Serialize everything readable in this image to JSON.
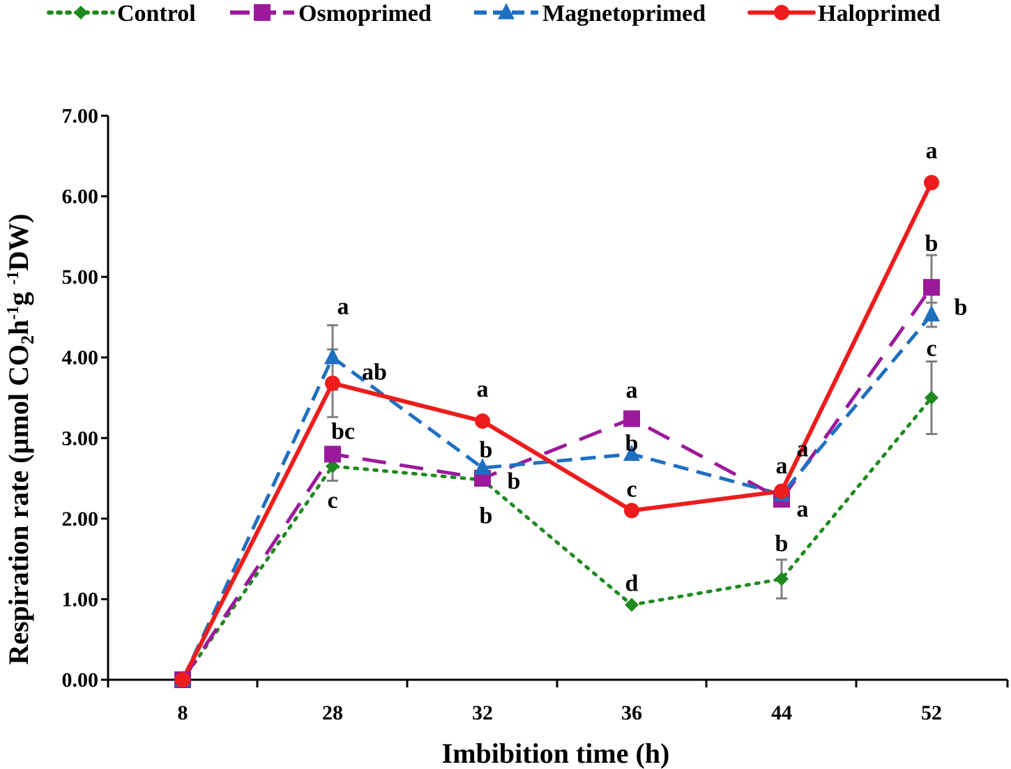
{
  "chart_data": {
    "type": "line",
    "title": "",
    "xlabel": "Imbibition time (h)",
    "ylabel": {
      "main": "Respiration rate (µmol CO",
      "sub": "2",
      "h": "h",
      "exp1": "-1",
      "g": "g ",
      "exp2": "-1",
      "tail": "DW)"
    },
    "categories": [
      "8",
      "28",
      "32",
      "36",
      "44",
      "52"
    ],
    "ylim": [
      0,
      7
    ],
    "yticks": [
      "0.00",
      "1.00",
      "2.00",
      "3.00",
      "4.00",
      "5.00",
      "6.00",
      "7.00"
    ],
    "legend_position": "top",
    "series": [
      {
        "name": "Control",
        "color": "#1f8a1f",
        "dash": "dotted",
        "marker": "diamond",
        "values": [
          0,
          2.65,
          2.48,
          0.93,
          1.25,
          3.5
        ],
        "errors": [
          0,
          0.18,
          0,
          0,
          0.24,
          0.45
        ],
        "letters": [
          "",
          "c",
          "b",
          "d",
          "b",
          "c"
        ]
      },
      {
        "name": "Osmoprimed",
        "color": "#9b1a9b",
        "dash": "long-dash",
        "marker": "square",
        "values": [
          0,
          2.8,
          2.5,
          3.24,
          2.24,
          4.87
        ],
        "errors": [
          0,
          0,
          0,
          0,
          0,
          0.4
        ],
        "letters": [
          "",
          "bc",
          "b",
          "a",
          "a",
          "b"
        ]
      },
      {
        "name": "Magnetoprimed",
        "color": "#1f6fc1",
        "dash": "dash",
        "marker": "triangle",
        "values": [
          0,
          4.0,
          2.63,
          2.8,
          2.3,
          4.53
        ],
        "errors": [
          0,
          0.4,
          0,
          0,
          0,
          0.15
        ],
        "letters": [
          "",
          "a",
          "b",
          "b",
          "a",
          "b"
        ]
      },
      {
        "name": "Haloprimed",
        "color": "#ee1c1c",
        "dash": "solid",
        "marker": "circle",
        "values": [
          0,
          3.68,
          3.21,
          2.1,
          2.34,
          6.17
        ],
        "errors": [
          0,
          0.42,
          0,
          0,
          0,
          0
        ],
        "letters": [
          "",
          "ab",
          "a",
          "c",
          "a",
          "a"
        ]
      }
    ]
  }
}
